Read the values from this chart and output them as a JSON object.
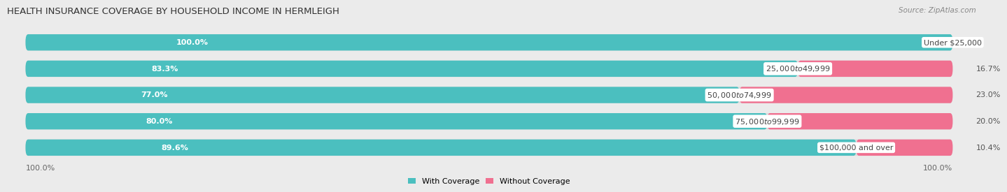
{
  "title": "HEALTH INSURANCE COVERAGE BY HOUSEHOLD INCOME IN HERMLEIGH",
  "source": "Source: ZipAtlas.com",
  "categories": [
    "Under $25,000",
    "$25,000 to $49,999",
    "$50,000 to $74,999",
    "$75,000 to $99,999",
    "$100,000 and over"
  ],
  "with_coverage": [
    100.0,
    83.3,
    77.0,
    80.0,
    89.6
  ],
  "without_coverage": [
    0.0,
    16.7,
    23.0,
    20.0,
    10.4
  ],
  "color_with": "#4BBFBF",
  "color_without": "#F07090",
  "color_without_light": "#F4A0B8",
  "bg_color": "#ebebeb",
  "bar_bg": "#dcdcdc",
  "title_fontsize": 9.5,
  "label_fontsize": 8,
  "tick_fontsize": 8,
  "pct_fontsize": 8
}
